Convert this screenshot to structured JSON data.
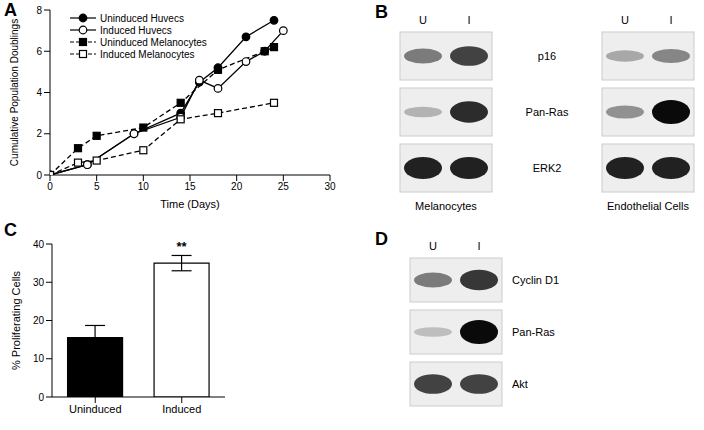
{
  "chart_data": [
    {
      "panel": "A",
      "type": "line",
      "x_label": "Time (Days)",
      "y_label": "Cumulative Population Doublings",
      "xlim": [
        0,
        30
      ],
      "xticks": [
        0,
        5,
        10,
        15,
        20,
        25,
        30
      ],
      "ylim": [
        0,
        8
      ],
      "yticks": [
        0,
        2,
        4,
        6,
        8
      ],
      "legend": "upper left",
      "series": [
        {
          "name": "Uninduced Huvecs",
          "color": "#000000",
          "marker": "circle",
          "line_style": "solid",
          "x": [
            0,
            4,
            9,
            14,
            16,
            18,
            21,
            24
          ],
          "values": [
            0,
            0.5,
            2,
            3,
            4.5,
            5.2,
            6.7,
            7.5
          ]
        },
        {
          "name": "Induced Huvecs",
          "color": "#000000",
          "marker": "open_circle",
          "line_style": "solid",
          "x": [
            0,
            4,
            9,
            14,
            16,
            18,
            21,
            23,
            25
          ],
          "values": [
            0,
            0.5,
            2,
            2.8,
            4.6,
            4.2,
            5.5,
            6,
            7
          ]
        },
        {
          "name": "Uninduced Melanocytes",
          "color": "#000000",
          "marker": "square",
          "line_style": "dashed",
          "x": [
            0,
            3,
            5,
            10,
            14,
            18,
            23,
            24
          ],
          "values": [
            0,
            1.3,
            1.9,
            2.3,
            3.5,
            5.1,
            6,
            6.2
          ]
        },
        {
          "name": "Induced Melanocytes",
          "color": "#000000",
          "marker": "open_square",
          "line_style": "dashed",
          "x": [
            0,
            3,
            5,
            10,
            14,
            18,
            24
          ],
          "values": [
            0,
            0.6,
            0.7,
            1.2,
            2.7,
            3,
            3.5
          ]
        }
      ]
    },
    {
      "panel": "C",
      "type": "bar",
      "y_label": "% Proliferating Cells",
      "categories": [
        "Uninduced",
        "Induced"
      ],
      "values": [
        15.5,
        35
      ],
      "errors": [
        3.2,
        2
      ],
      "colors": [
        "#000000",
        "#ffffff"
      ],
      "ylim": [
        0,
        40
      ],
      "yticks": [
        0,
        10,
        20,
        30,
        40
      ],
      "annotations": [
        {
          "text": "**",
          "category": "Induced"
        }
      ]
    }
  ],
  "blots": [
    {
      "panel": "B",
      "rows": [
        "p16",
        "Pan-Ras",
        "ERK2"
      ],
      "groups": [
        {
          "name": "Melanocytes",
          "lanes": [
            "U",
            "I"
          ],
          "bands": [
            [
              0.5,
              0.75
            ],
            [
              0.25,
              0.85
            ],
            [
              0.9,
              0.9
            ]
          ]
        },
        {
          "name": "Endothelial Cells",
          "lanes": [
            "U",
            "I"
          ],
          "bands": [
            [
              0.3,
              0.45
            ],
            [
              0.4,
              1
            ],
            [
              0.9,
              0.9
            ]
          ]
        }
      ]
    },
    {
      "panel": "D",
      "rows": [
        "Cyclin D1",
        "Pan-Ras",
        "Akt"
      ],
      "groups": [
        {
          "lanes": [
            "U",
            "I"
          ],
          "bands": [
            [
              0.5,
              0.8
            ],
            [
              0.2,
              1
            ],
            [
              0.75,
              0.75
            ]
          ]
        }
      ]
    }
  ]
}
